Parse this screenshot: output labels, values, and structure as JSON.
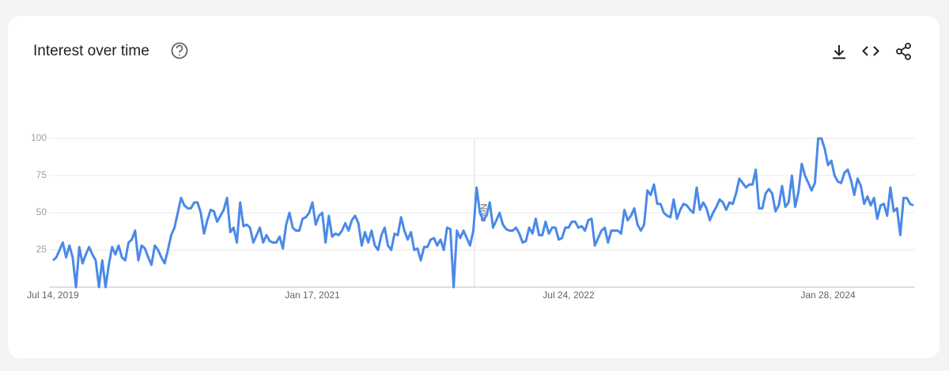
{
  "chart_data": {
    "type": "line",
    "title": "Interest over time",
    "annotation": "Note",
    "categories": [
      "Jul 14, 2019",
      null,
      null,
      null,
      null,
      null,
      null,
      null,
      null,
      null,
      null,
      null,
      null,
      null,
      null,
      null,
      null,
      null,
      null,
      null,
      null,
      null,
      null,
      null,
      null,
      null,
      null,
      null,
      null,
      null,
      null,
      null,
      null,
      null,
      null,
      null,
      null,
      null,
      null,
      null,
      null,
      null,
      null,
      null,
      null,
      null,
      null,
      null,
      null,
      null,
      null,
      null,
      null,
      null,
      null,
      null,
      null,
      null,
      null,
      null,
      null,
      null,
      null,
      null,
      null,
      null,
      null,
      null,
      null,
      null,
      null,
      null,
      null,
      null,
      null,
      null,
      null,
      null,
      null,
      "Jan 17, 2021",
      null,
      null,
      null,
      null,
      null,
      null,
      null,
      null,
      null,
      null,
      null,
      null,
      null,
      null,
      null,
      null,
      null,
      null,
      null,
      null,
      null,
      null,
      null,
      null,
      null,
      null,
      null,
      null,
      null,
      null,
      null,
      null,
      null,
      null,
      null,
      null,
      null,
      null,
      null,
      null,
      null,
      null,
      null,
      null,
      null,
      null,
      null,
      null,
      null,
      null,
      null,
      null,
      null,
      null,
      null,
      null,
      null,
      null,
      null,
      null,
      null,
      null,
      null,
      null,
      null,
      null,
      null,
      null,
      null,
      null,
      null,
      null,
      null,
      null,
      null,
      null,
      null,
      "Jul 24, 2022",
      null,
      null,
      null,
      null,
      null,
      null,
      null,
      null,
      null,
      null,
      null,
      null,
      null,
      null,
      null,
      null,
      null,
      null,
      null,
      null,
      null,
      null,
      null,
      null,
      null,
      null,
      null,
      null,
      null,
      null,
      null,
      null,
      null,
      null,
      null,
      null,
      null,
      null,
      null,
      null,
      null,
      null,
      null,
      null,
      null,
      null,
      null,
      null,
      null,
      null,
      null,
      null,
      null,
      null,
      null,
      null,
      null,
      null,
      null,
      null,
      null,
      null,
      null,
      null,
      null,
      null,
      null,
      null,
      null,
      null,
      null,
      null,
      null,
      null,
      null,
      null,
      null,
      null,
      "Jan 28, 2024",
      null,
      null,
      null,
      null,
      null,
      null,
      null,
      null,
      null,
      null,
      null,
      null,
      null,
      null,
      null,
      null,
      null,
      null,
      null,
      null,
      null,
      null,
      null,
      null,
      null,
      null
    ],
    "series": [
      {
        "color": "#4a89e8",
        "values": [
          18,
          20,
          25,
          30,
          20,
          28,
          20,
          0,
          27,
          16,
          22,
          27,
          22,
          18,
          0,
          18,
          0,
          15,
          27,
          22,
          28,
          20,
          18,
          30,
          32,
          38,
          18,
          28,
          26,
          20,
          15,
          28,
          25,
          20,
          16,
          25,
          35,
          40,
          50,
          60,
          55,
          53,
          53,
          57,
          57,
          50,
          36,
          45,
          52,
          51,
          44,
          48,
          52,
          60,
          37,
          40,
          30,
          57,
          41,
          42,
          40,
          30,
          35,
          40,
          30,
          35,
          31,
          30,
          30,
          34,
          26,
          42,
          50,
          40,
          38,
          38,
          46,
          47,
          50,
          57,
          42,
          48,
          50,
          30,
          48,
          34,
          36,
          35,
          38,
          43,
          38,
          45,
          48,
          43,
          28,
          37,
          30,
          38,
          28,
          25,
          35,
          40,
          28,
          25,
          36,
          35,
          47,
          38,
          32,
          37,
          25,
          26,
          18,
          27,
          27,
          32,
          33,
          28,
          32,
          25,
          40,
          39,
          0,
          38,
          33,
          38,
          33,
          28,
          38,
          67,
          50,
          45,
          48,
          57,
          40,
          45,
          50,
          42,
          39,
          38,
          38,
          40,
          36,
          30,
          31,
          40,
          36,
          46,
          35,
          35,
          44,
          36,
          40,
          40,
          32,
          33,
          40,
          40,
          44,
          44,
          40,
          41,
          38,
          45,
          46,
          28,
          33,
          38,
          40,
          30,
          38,
          38,
          38,
          36,
          52,
          45,
          48,
          53,
          42,
          38,
          42,
          65,
          62,
          69,
          56,
          56,
          50,
          48,
          47,
          59,
          46,
          52,
          56,
          55,
          52,
          50,
          67,
          52,
          57,
          53,
          45,
          50,
          54,
          59,
          57,
          52,
          57,
          56,
          63,
          73,
          70,
          67,
          69,
          69,
          79,
          53,
          53,
          63,
          66,
          63,
          51,
          55,
          68,
          54,
          57,
          75,
          54,
          64,
          83,
          75,
          70,
          65,
          70,
          100,
          100,
          93,
          82,
          85,
          75,
          71,
          70,
          77,
          79,
          72,
          62,
          73,
          68,
          56,
          61,
          55,
          60,
          46,
          55,
          56,
          48,
          67,
          51,
          53,
          35,
          60,
          60,
          56,
          55
        ]
      }
    ],
    "ylim": [
      0,
      100
    ],
    "yticks": [
      25,
      50,
      75,
      100
    ],
    "grid": true
  }
}
